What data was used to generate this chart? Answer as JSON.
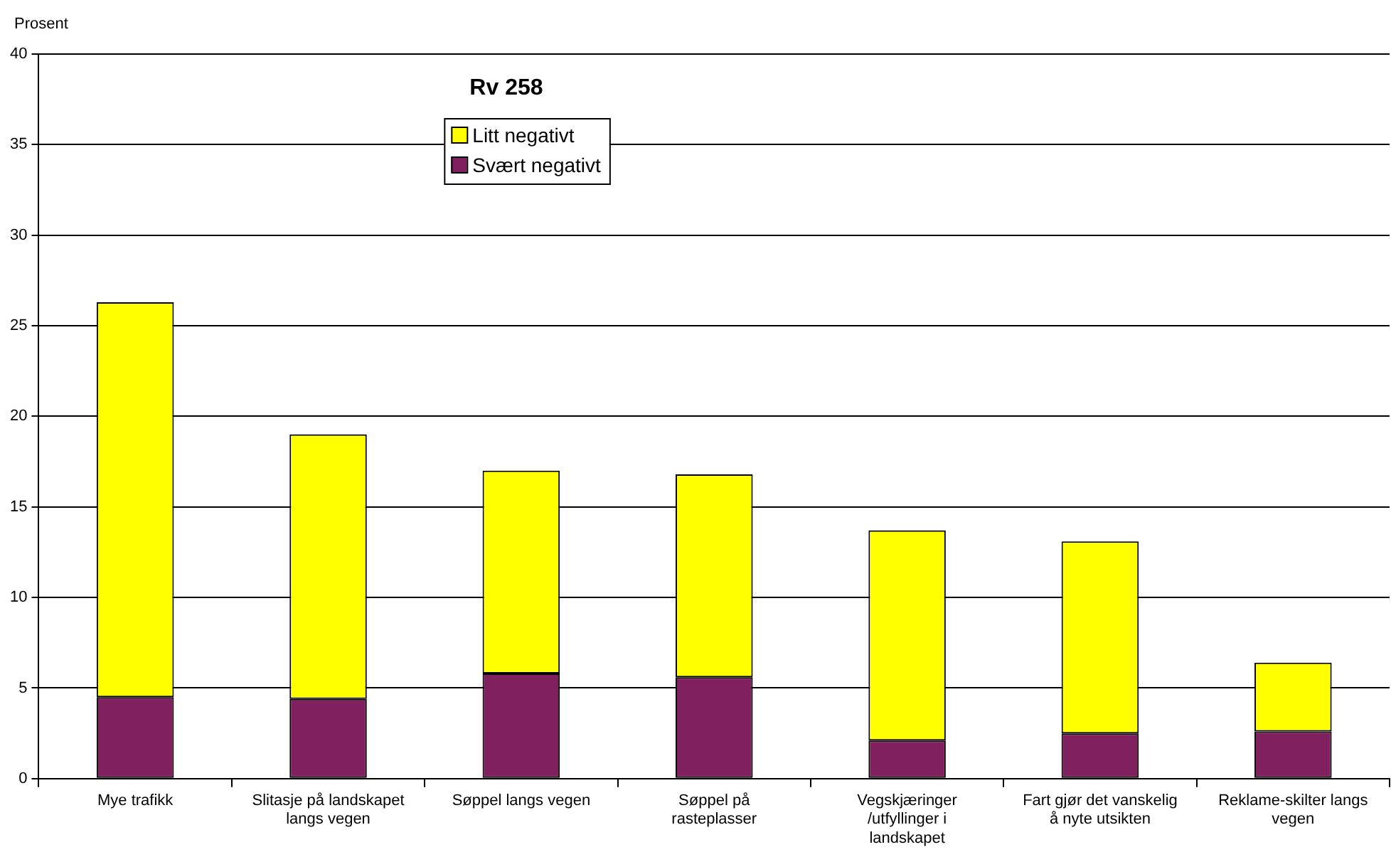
{
  "chart_data": {
    "type": "bar",
    "title": "Rv 258",
    "ylabel": "Prosent",
    "stacked": true,
    "categories": [
      "Mye trafikk",
      "Slitasje på landskapet langs vegen",
      "Søppel langs vegen",
      "Søppel på rasteplasser",
      "Vegskjæringer /utfyllinger i landskapet",
      "Fart gjør det vanskelig å nyte utsikten",
      "Reklame-skilter langs vegen"
    ],
    "series": [
      {
        "name": "Svært negativt",
        "color": "#80205f",
        "values": [
          4.5,
          4.4,
          5.8,
          5.6,
          2.1,
          2.5,
          2.6
        ]
      },
      {
        "name": "Litt negativt",
        "color": "#ffff00",
        "values": [
          21.8,
          14.6,
          11.2,
          11.2,
          11.6,
          10.6,
          3.8
        ]
      }
    ],
    "ylim": [
      0,
      40
    ],
    "yticks": [
      0,
      5,
      10,
      15,
      20,
      25,
      30,
      35,
      40
    ],
    "grid": "y",
    "legend": "top"
  }
}
